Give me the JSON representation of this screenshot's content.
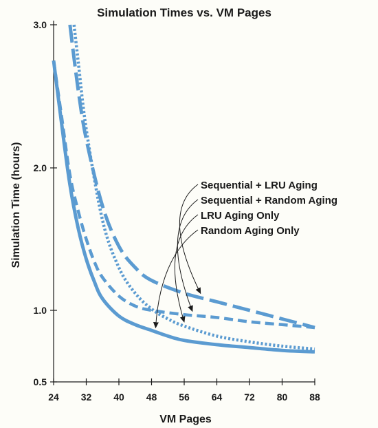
{
  "chart_data": {
    "type": "line",
    "title": "Simulation Times vs. VM Pages",
    "xlabel": "VM Pages",
    "ylabel": "Simulation Time (hours)",
    "xlim": [
      24,
      88
    ],
    "ylim": [
      0.5,
      3.0
    ],
    "x_ticks": [
      24,
      32,
      40,
      48,
      56,
      64,
      72,
      80,
      88
    ],
    "y_ticks": [
      0.5,
      1.0,
      2.0,
      3.0
    ],
    "x_tick_labels": [
      "24",
      "32",
      "40",
      "48",
      "56",
      "64",
      "72",
      "80",
      "88"
    ],
    "y_tick_labels": [
      "0.5",
      "1.0",
      "2.0",
      "3.0"
    ],
    "grid": false,
    "legend_placement": "center-right",
    "line_color": "#5b9bd1",
    "series": [
      {
        "name": "Sequential + LRU Aging",
        "style": "long-dash",
        "x": [
          28,
          30,
          32,
          36,
          40,
          44,
          48,
          56,
          64,
          72,
          80,
          88
        ],
        "y": [
          3.0,
          2.55,
          2.2,
          1.73,
          1.45,
          1.3,
          1.21,
          1.12,
          1.06,
          1.0,
          0.94,
          0.88
        ]
      },
      {
        "name": "Sequential + Random Aging",
        "style": "dash",
        "x": [
          24,
          26,
          28,
          30,
          32,
          34,
          36,
          40,
          44,
          48,
          56,
          64,
          72,
          80,
          88
        ],
        "y": [
          2.75,
          2.35,
          1.95,
          1.7,
          1.5,
          1.34,
          1.23,
          1.1,
          1.03,
          1.0,
          0.97,
          0.95,
          0.92,
          0.9,
          0.88
        ]
      },
      {
        "name": "LRU Aging Only",
        "style": "dotted",
        "x": [
          29,
          30,
          32,
          36,
          40,
          44,
          48,
          52,
          56,
          64,
          72,
          80,
          88
        ],
        "y": [
          3.0,
          2.75,
          2.27,
          1.63,
          1.3,
          1.12,
          1.01,
          0.94,
          0.89,
          0.82,
          0.78,
          0.75,
          0.73
        ]
      },
      {
        "name": "Random Aging Only",
        "style": "solid",
        "x": [
          24,
          26,
          28,
          30,
          32,
          34,
          36,
          40,
          44,
          48,
          52,
          56,
          64,
          72,
          80,
          88
        ],
        "y": [
          2.75,
          2.3,
          1.88,
          1.58,
          1.36,
          1.2,
          1.08,
          0.96,
          0.9,
          0.86,
          0.82,
          0.79,
          0.76,
          0.74,
          0.72,
          0.71
        ]
      }
    ]
  }
}
